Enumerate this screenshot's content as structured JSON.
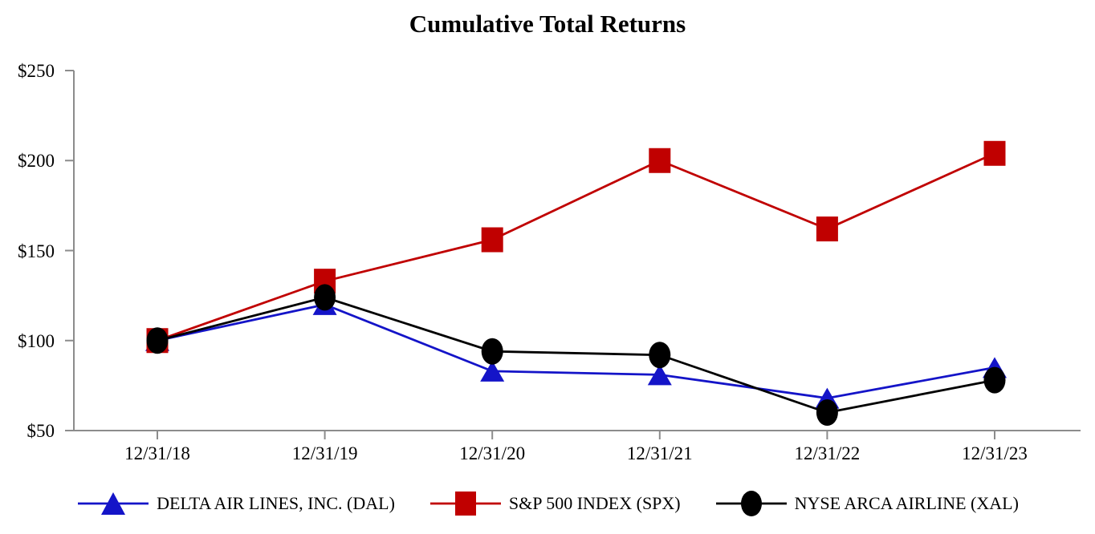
{
  "title": "Cumulative Total Returns",
  "chart_data": {
    "type": "line",
    "title": "Cumulative Total Returns",
    "categories": [
      "12/31/18",
      "12/31/19",
      "12/31/20",
      "12/31/21",
      "12/31/22",
      "12/31/23"
    ],
    "series": [
      {
        "name": "DELTA AIR LINES, INC. (DAL)",
        "marker": "triangle",
        "color": "#1414C8",
        "values": [
          100,
          120,
          83,
          81,
          68,
          85
        ]
      },
      {
        "name": "S&P 500 INDEX (SPX)",
        "marker": "square",
        "color": "#C00000",
        "values": [
          100,
          133,
          156,
          200,
          162,
          204
        ]
      },
      {
        "name": "NYSE ARCA AIRLINE (XAL)",
        "marker": "circle",
        "color": "#000000",
        "values": [
          100,
          124,
          94,
          92,
          60,
          78
        ]
      }
    ],
    "ylim": [
      50,
      250
    ],
    "y_tick_values": [
      250,
      200,
      150,
      100,
      50
    ],
    "y_tick_labels": [
      "$250",
      "$200",
      "$150",
      "$100",
      "$50"
    ],
    "currency_prefix": "$",
    "grid": false,
    "legend_position": "bottom",
    "axis_color": "#8C8C8C",
    "background_color": "#FFFFFF"
  }
}
